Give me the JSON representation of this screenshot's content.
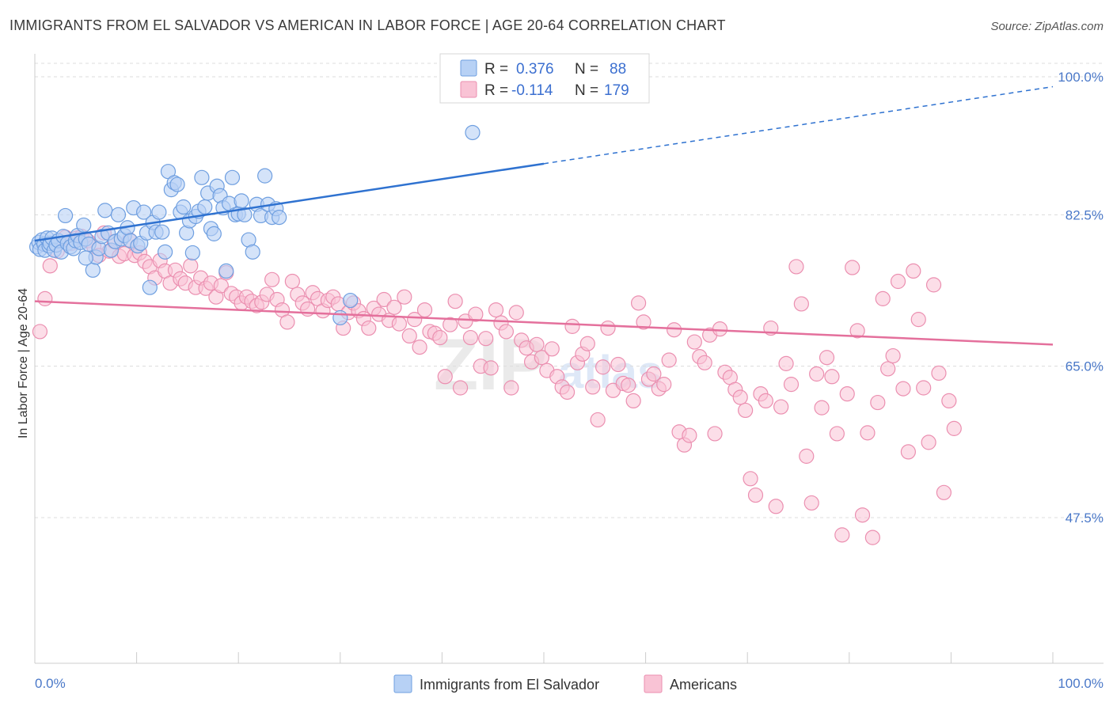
{
  "title": "IMMIGRANTS FROM EL SALVADOR VS AMERICAN IN LABOR FORCE | AGE 20-64 CORRELATION CHART",
  "source": "Source: ZipAtlas.com",
  "watermark": {
    "a": "ZIP",
    "b": "atlas"
  },
  "colors": {
    "blue_fill": "#b7d1f5",
    "blue_stroke": "#6f9fe0",
    "blue_line": "#2f72d0",
    "pink_fill": "#f9c3d5",
    "pink_stroke": "#eb8fb0",
    "pink_line": "#e4709c",
    "grid": "#dcdcdc",
    "tick_label": "#4a78c8"
  },
  "legend": {
    "rows": [
      {
        "r_label": "R =",
        "r_value": "0.376",
        "n_label": "N =",
        "n_value": "88"
      },
      {
        "r_label": "R =",
        "r_value": "-0.114",
        "n_label": "N =",
        "n_value": "179"
      }
    ]
  },
  "bottom_legend": [
    "Immigrants from El Salvador",
    "Americans"
  ],
  "chart_data": {
    "type": "scatter",
    "ylabel": "In Labor Force | Age 20-64",
    "xlabel": "",
    "xlim": [
      0,
      100
    ],
    "ylim": [
      30,
      100
    ],
    "x_tick_labels": [
      "0.0%",
      "100.0%"
    ],
    "y_ticks": [
      47.5,
      65.0,
      82.5,
      100.0
    ],
    "y_tick_labels": [
      "47.5%",
      "65.0%",
      "82.5%",
      "100.0%"
    ],
    "grid": true,
    "series": [
      {
        "name": "Immigrants from El Salvador",
        "trend": {
          "x": [
            0,
            50
          ],
          "y": [
            79.5,
            88.4
          ],
          "dashed_extension_to": [
            100,
            97.3
          ]
        },
        "points": [
          [
            0.2,
            78.8
          ],
          [
            0.4,
            79.3
          ],
          [
            0.5,
            78.5
          ],
          [
            0.7,
            79.6
          ],
          [
            0.9,
            79.1
          ],
          [
            1.0,
            78.4
          ],
          [
            1.2,
            79.8
          ],
          [
            1.4,
            78.9
          ],
          [
            1.5,
            79.2
          ],
          [
            1.7,
            79.8
          ],
          [
            1.9,
            78.4
          ],
          [
            2.1,
            79.0
          ],
          [
            2.3,
            79.5
          ],
          [
            2.6,
            78.2
          ],
          [
            2.8,
            80.0
          ],
          [
            3.0,
            82.4
          ],
          [
            3.2,
            79.2
          ],
          [
            3.5,
            78.8
          ],
          [
            3.8,
            78.6
          ],
          [
            4.0,
            79.5
          ],
          [
            4.2,
            80.1
          ],
          [
            4.5,
            79.3
          ],
          [
            4.8,
            81.3
          ],
          [
            5.0,
            79.7
          ],
          [
            5.3,
            79.1
          ],
          [
            5.7,
            76.1
          ],
          [
            6.0,
            77.6
          ],
          [
            6.3,
            78.6
          ],
          [
            6.6,
            80.0
          ],
          [
            6.9,
            83.0
          ],
          [
            7.2,
            80.4
          ],
          [
            7.5,
            78.4
          ],
          [
            7.9,
            79.4
          ],
          [
            8.2,
            82.5
          ],
          [
            8.5,
            79.7
          ],
          [
            8.8,
            80.1
          ],
          [
            9.1,
            81.0
          ],
          [
            9.4,
            79.5
          ],
          [
            9.7,
            83.3
          ],
          [
            10.1,
            78.9
          ],
          [
            10.4,
            79.2
          ],
          [
            10.7,
            82.8
          ],
          [
            11.0,
            80.4
          ],
          [
            11.3,
            74.1
          ],
          [
            11.6,
            81.6
          ],
          [
            11.9,
            80.5
          ],
          [
            12.2,
            82.8
          ],
          [
            12.5,
            80.5
          ],
          [
            12.8,
            78.2
          ],
          [
            13.1,
            87.5
          ],
          [
            13.4,
            85.4
          ],
          [
            13.7,
            86.2
          ],
          [
            14.0,
            86.0
          ],
          [
            14.3,
            82.8
          ],
          [
            14.6,
            83.4
          ],
          [
            14.9,
            80.4
          ],
          [
            15.2,
            81.8
          ],
          [
            15.5,
            78.1
          ],
          [
            15.8,
            82.3
          ],
          [
            16.1,
            82.9
          ],
          [
            16.4,
            86.8
          ],
          [
            16.7,
            83.4
          ],
          [
            17.0,
            85.0
          ],
          [
            17.3,
            80.9
          ],
          [
            17.6,
            80.3
          ],
          [
            17.9,
            85.8
          ],
          [
            18.2,
            84.7
          ],
          [
            18.5,
            83.3
          ],
          [
            18.8,
            76.0
          ],
          [
            19.1,
            83.8
          ],
          [
            19.4,
            86.8
          ],
          [
            19.7,
            82.5
          ],
          [
            20.0,
            82.6
          ],
          [
            20.3,
            84.1
          ],
          [
            20.6,
            82.5
          ],
          [
            21.0,
            79.6
          ],
          [
            21.4,
            78.2
          ],
          [
            21.8,
            83.7
          ],
          [
            22.2,
            82.4
          ],
          [
            22.6,
            87.0
          ],
          [
            22.9,
            83.7
          ],
          [
            23.3,
            82.2
          ],
          [
            23.7,
            83.2
          ],
          [
            24.0,
            82.2
          ],
          [
            30.0,
            70.6
          ],
          [
            31.0,
            72.6
          ],
          [
            5.0,
            77.5
          ],
          [
            43.0,
            92.0
          ]
        ]
      },
      {
        "name": "Americans",
        "trend": {
          "x": [
            0,
            100
          ],
          "y": [
            72.5,
            67.5
          ]
        },
        "points": [
          [
            0.5,
            69.0
          ],
          [
            1.0,
            72.8
          ],
          [
            1.5,
            76.6
          ],
          [
            2.2,
            78.3
          ],
          [
            3.0,
            79.9
          ],
          [
            3.6,
            79.2
          ],
          [
            4.1,
            79.8
          ],
          [
            4.6,
            80.0
          ],
          [
            5.2,
            79.5
          ],
          [
            5.8,
            78.8
          ],
          [
            6.3,
            77.8
          ],
          [
            6.8,
            80.4
          ],
          [
            7.3,
            78.3
          ],
          [
            7.8,
            79.4
          ],
          [
            8.3,
            77.7
          ],
          [
            8.8,
            78.0
          ],
          [
            9.3,
            79.6
          ],
          [
            9.8,
            77.8
          ],
          [
            10.3,
            78.1
          ],
          [
            10.8,
            77.1
          ],
          [
            11.3,
            76.5
          ],
          [
            11.8,
            75.2
          ],
          [
            12.3,
            77.2
          ],
          [
            12.8,
            76.0
          ],
          [
            13.3,
            74.6
          ],
          [
            13.8,
            76.1
          ],
          [
            14.3,
            75.1
          ],
          [
            14.8,
            74.6
          ],
          [
            15.3,
            76.6
          ],
          [
            15.8,
            74.1
          ],
          [
            16.3,
            75.2
          ],
          [
            16.8,
            74.0
          ],
          [
            17.3,
            74.6
          ],
          [
            17.8,
            73.0
          ],
          [
            18.3,
            74.3
          ],
          [
            18.8,
            75.8
          ],
          [
            19.3,
            73.4
          ],
          [
            19.8,
            73.0
          ],
          [
            20.3,
            72.3
          ],
          [
            20.8,
            73.0
          ],
          [
            21.3,
            72.5
          ],
          [
            21.8,
            72.0
          ],
          [
            22.3,
            72.4
          ],
          [
            22.8,
            73.3
          ],
          [
            23.3,
            75.0
          ],
          [
            23.8,
            72.7
          ],
          [
            24.3,
            71.5
          ],
          [
            24.8,
            70.1
          ],
          [
            25.3,
            74.8
          ],
          [
            25.8,
            73.3
          ],
          [
            26.3,
            72.3
          ],
          [
            26.8,
            71.6
          ],
          [
            27.3,
            73.5
          ],
          [
            27.8,
            72.8
          ],
          [
            28.3,
            71.4
          ],
          [
            28.8,
            72.6
          ],
          [
            29.3,
            73.0
          ],
          [
            29.8,
            72.2
          ],
          [
            30.3,
            69.4
          ],
          [
            30.8,
            71.2
          ],
          [
            31.3,
            72.3
          ],
          [
            31.8,
            71.4
          ],
          [
            32.3,
            70.5
          ],
          [
            32.8,
            69.4
          ],
          [
            33.3,
            71.7
          ],
          [
            33.8,
            71.0
          ],
          [
            34.3,
            72.7
          ],
          [
            34.8,
            70.3
          ],
          [
            35.3,
            71.8
          ],
          [
            35.8,
            69.9
          ],
          [
            36.3,
            73.0
          ],
          [
            36.8,
            68.5
          ],
          [
            37.3,
            70.4
          ],
          [
            37.8,
            67.2
          ],
          [
            38.3,
            71.5
          ],
          [
            38.8,
            69.0
          ],
          [
            39.3,
            68.8
          ],
          [
            39.8,
            68.3
          ],
          [
            40.3,
            63.8
          ],
          [
            40.8,
            69.8
          ],
          [
            41.3,
            72.5
          ],
          [
            41.8,
            62.5
          ],
          [
            42.3,
            70.2
          ],
          [
            42.8,
            68.3
          ],
          [
            43.3,
            71.0
          ],
          [
            43.8,
            65.0
          ],
          [
            44.3,
            68.2
          ],
          [
            44.8,
            64.8
          ],
          [
            45.3,
            71.5
          ],
          [
            45.8,
            70.0
          ],
          [
            46.3,
            69.0
          ],
          [
            46.8,
            62.5
          ],
          [
            47.3,
            71.2
          ],
          [
            47.8,
            68.0
          ],
          [
            48.3,
            67.1
          ],
          [
            48.8,
            65.5
          ],
          [
            49.3,
            67.5
          ],
          [
            49.8,
            66.0
          ],
          [
            50.3,
            64.5
          ],
          [
            50.8,
            67.0
          ],
          [
            51.3,
            63.8
          ],
          [
            51.8,
            62.6
          ],
          [
            52.3,
            62.0
          ],
          [
            52.8,
            69.6
          ],
          [
            53.3,
            65.4
          ],
          [
            53.8,
            66.4
          ],
          [
            54.3,
            67.6
          ],
          [
            54.8,
            62.6
          ],
          [
            55.3,
            58.8
          ],
          [
            55.8,
            64.9
          ],
          [
            56.3,
            69.4
          ],
          [
            56.8,
            62.2
          ],
          [
            57.3,
            65.2
          ],
          [
            57.8,
            63.0
          ],
          [
            58.3,
            62.8
          ],
          [
            58.8,
            61.0
          ],
          [
            59.3,
            72.3
          ],
          [
            59.8,
            70.1
          ],
          [
            60.3,
            63.5
          ],
          [
            60.8,
            64.1
          ],
          [
            61.3,
            62.4
          ],
          [
            61.8,
            62.9
          ],
          [
            62.3,
            65.7
          ],
          [
            62.8,
            69.2
          ],
          [
            63.3,
            57.4
          ],
          [
            63.8,
            55.9
          ],
          [
            64.3,
            57.0
          ],
          [
            64.8,
            67.8
          ],
          [
            65.3,
            66.1
          ],
          [
            65.8,
            65.4
          ],
          [
            66.3,
            68.6
          ],
          [
            66.8,
            57.2
          ],
          [
            67.3,
            69.3
          ],
          [
            67.8,
            64.3
          ],
          [
            68.3,
            63.7
          ],
          [
            68.8,
            62.3
          ],
          [
            69.3,
            61.4
          ],
          [
            69.8,
            59.9
          ],
          [
            70.3,
            52.0
          ],
          [
            70.8,
            50.1
          ],
          [
            71.3,
            61.8
          ],
          [
            71.8,
            61.0
          ],
          [
            72.3,
            69.4
          ],
          [
            72.8,
            48.8
          ],
          [
            73.3,
            60.3
          ],
          [
            73.8,
            65.3
          ],
          [
            74.3,
            62.9
          ],
          [
            74.8,
            76.5
          ],
          [
            75.3,
            72.2
          ],
          [
            75.8,
            54.6
          ],
          [
            76.3,
            49.2
          ],
          [
            76.8,
            64.1
          ],
          [
            77.3,
            60.2
          ],
          [
            77.8,
            66.0
          ],
          [
            78.3,
            63.8
          ],
          [
            78.8,
            57.2
          ],
          [
            79.3,
            45.5
          ],
          [
            79.8,
            61.8
          ],
          [
            80.3,
            76.4
          ],
          [
            80.8,
            69.1
          ],
          [
            81.3,
            47.8
          ],
          [
            81.8,
            57.3
          ],
          [
            82.3,
            45.2
          ],
          [
            82.8,
            60.8
          ],
          [
            83.3,
            72.8
          ],
          [
            83.8,
            64.7
          ],
          [
            84.3,
            66.2
          ],
          [
            84.8,
            74.8
          ],
          [
            85.3,
            62.4
          ],
          [
            85.8,
            55.1
          ],
          [
            86.3,
            76.0
          ],
          [
            86.8,
            70.4
          ],
          [
            87.3,
            62.5
          ],
          [
            87.8,
            56.2
          ],
          [
            88.3,
            74.4
          ],
          [
            88.8,
            64.2
          ],
          [
            89.3,
            50.4
          ],
          [
            89.8,
            61.0
          ],
          [
            90.3,
            57.8
          ]
        ]
      }
    ]
  }
}
